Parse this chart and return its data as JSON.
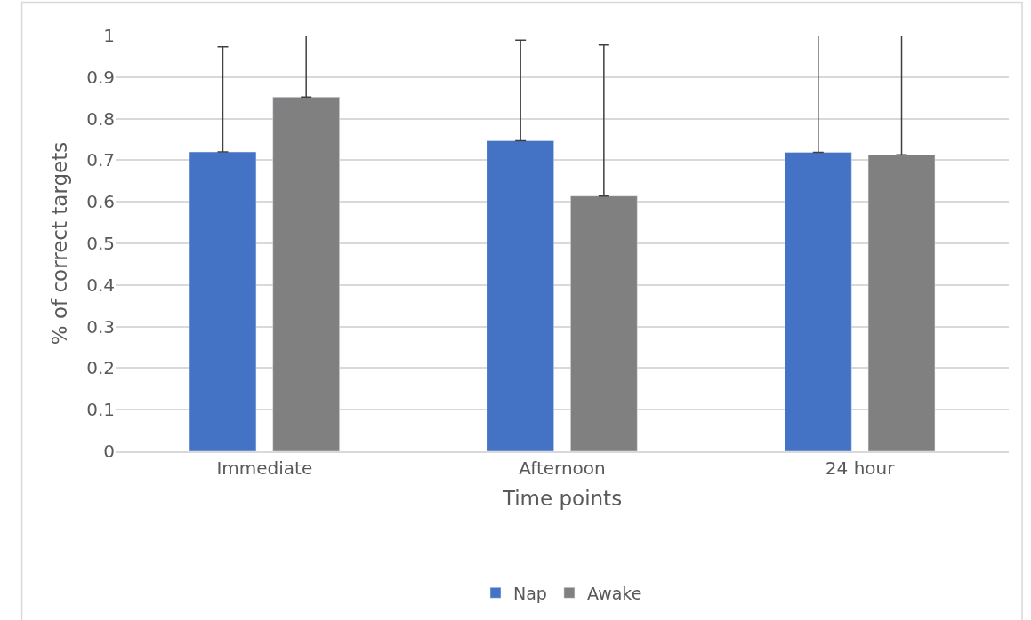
{
  "chart_data": {
    "type": "bar",
    "xlabel": "Time points",
    "ylabel": "% of correct targets",
    "categories": [
      "Immediate",
      "Afternoon",
      "24 hour"
    ],
    "series": [
      {
        "name": "Nap",
        "color": "#4472c4",
        "values": [
          0.72,
          0.747,
          0.719
        ],
        "errors": [
          [
            0.72,
            0.973
          ],
          [
            0.747,
            0.989
          ],
          [
            0.719,
            1.0
          ]
        ]
      },
      {
        "name": "Awake",
        "color": "#808080",
        "values": [
          0.852,
          0.614,
          0.713
        ],
        "errors": [
          [
            0.852,
            1.0
          ],
          [
            0.614,
            0.977
          ],
          [
            0.713,
            1.0
          ]
        ]
      }
    ],
    "ylim": [
      0,
      1
    ],
    "yticks": [
      0,
      0.1,
      0.2,
      0.3,
      0.4,
      0.5,
      0.6,
      0.7,
      0.8,
      0.9,
      1
    ],
    "grid": "y",
    "legend": "bottom"
  }
}
